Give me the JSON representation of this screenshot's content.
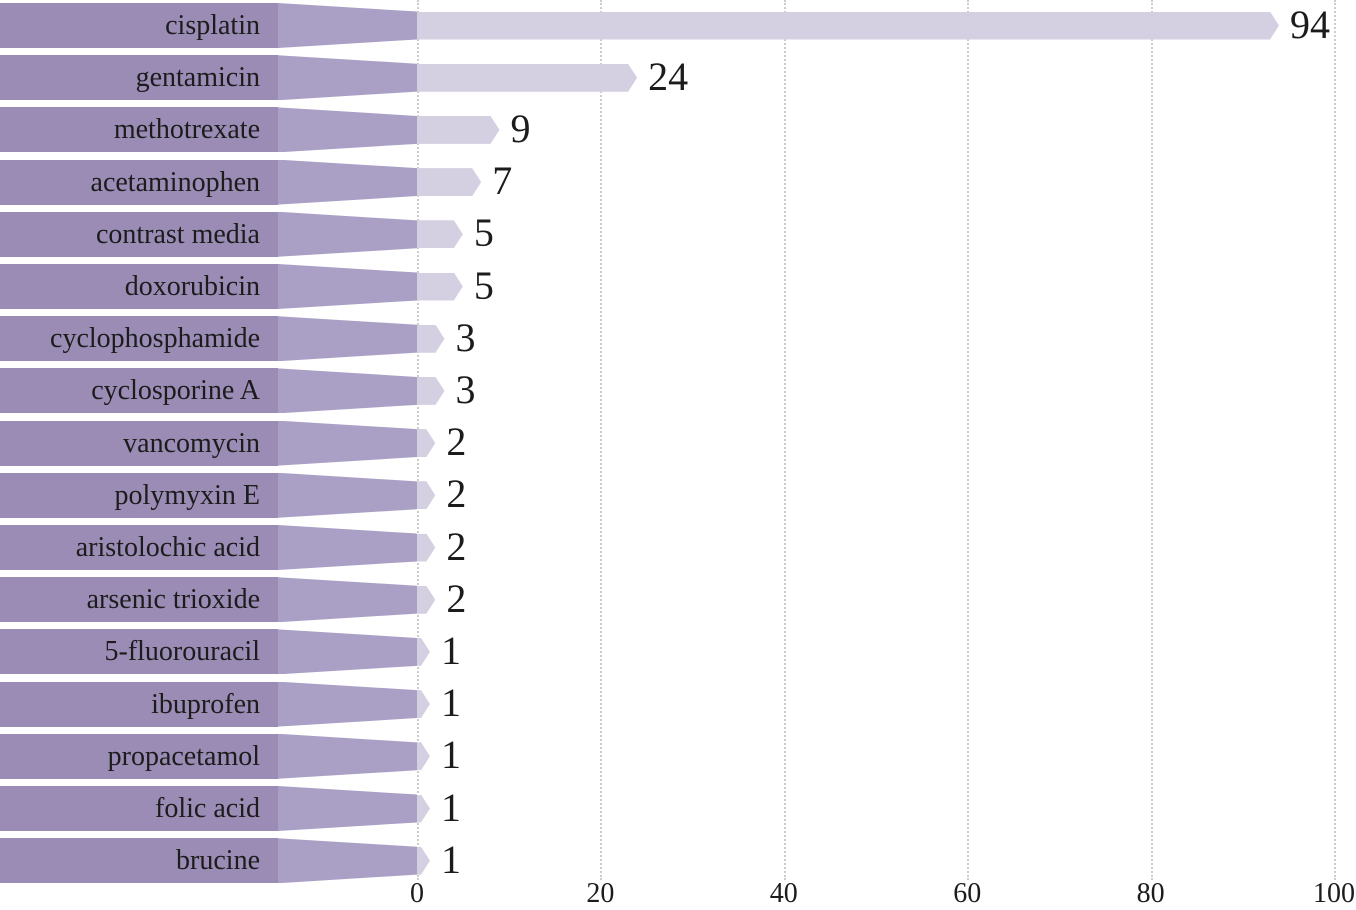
{
  "chart_data": {
    "type": "bar",
    "orientation": "horizontal",
    "title": "",
    "xlabel": "",
    "ylabel": "",
    "categories": [
      "cisplatin",
      "gentamicin",
      "methotrexate",
      "acetaminophen",
      "contrast media",
      "doxorubicin",
      "cyclophosphamide",
      "cyclosporine A",
      "vancomycin",
      "polymyxin E",
      "aristolochic acid",
      "arsenic trioxide",
      "5-fluorouracil",
      "ibuprofen",
      "propacetamol",
      "folic acid",
      "brucine"
    ],
    "values": [
      94,
      24,
      9,
      7,
      5,
      5,
      3,
      3,
      2,
      2,
      2,
      2,
      1,
      1,
      1,
      1,
      1
    ],
    "data_labels": [
      "94",
      "24",
      "9",
      "7",
      "5",
      "5",
      "3",
      "3",
      "2",
      "2",
      "2",
      "2",
      "1",
      "1",
      "1",
      "1",
      "1"
    ],
    "x_ticks": [
      0,
      20,
      40,
      60,
      80,
      100
    ],
    "xlim": [
      0,
      100
    ],
    "grid": "vertical-dotted",
    "legend": "none",
    "colors": {
      "category_band": "#9a8cb5",
      "funnel_band": "#aaa0c6",
      "value_bar": "#d5cfe2",
      "gridline": "#cccccc",
      "text": "#1c1c1c",
      "background": "#ffffff"
    }
  }
}
